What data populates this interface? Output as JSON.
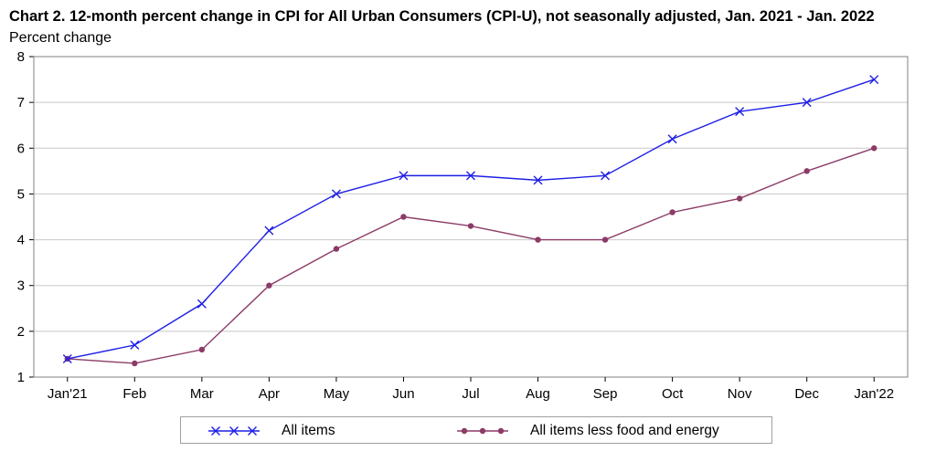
{
  "chart_data": {
    "type": "line",
    "title": "Chart 2. 12-month percent change in CPI for All Urban Consumers (CPI-U), not seasonally adjusted, Jan. 2021 - Jan. 2022",
    "ylabel": "Percent change",
    "xlabel": "",
    "categories": [
      "Jan'21",
      "Feb",
      "Mar",
      "Apr",
      "May",
      "Jun",
      "Jul",
      "Aug",
      "Sep",
      "Oct",
      "Nov",
      "Dec",
      "Jan'22"
    ],
    "ylim": [
      1,
      8
    ],
    "yticks": [
      1,
      2,
      3,
      4,
      5,
      6,
      7,
      8
    ],
    "grid": true,
    "legend_position": "bottom",
    "series": [
      {
        "name": "All items",
        "color": "#1f1fe6",
        "marker": "x",
        "values": [
          1.4,
          1.7,
          2.6,
          4.2,
          5.0,
          5.4,
          5.4,
          5.3,
          5.4,
          6.2,
          6.8,
          7.0,
          7.5
        ]
      },
      {
        "name": "All items less food and energy",
        "color": "#8c3a66",
        "marker": "circle",
        "values": [
          1.4,
          1.3,
          1.6,
          3.0,
          3.8,
          4.5,
          4.3,
          4.0,
          4.0,
          4.6,
          4.9,
          5.5,
          6.0
        ]
      }
    ]
  }
}
